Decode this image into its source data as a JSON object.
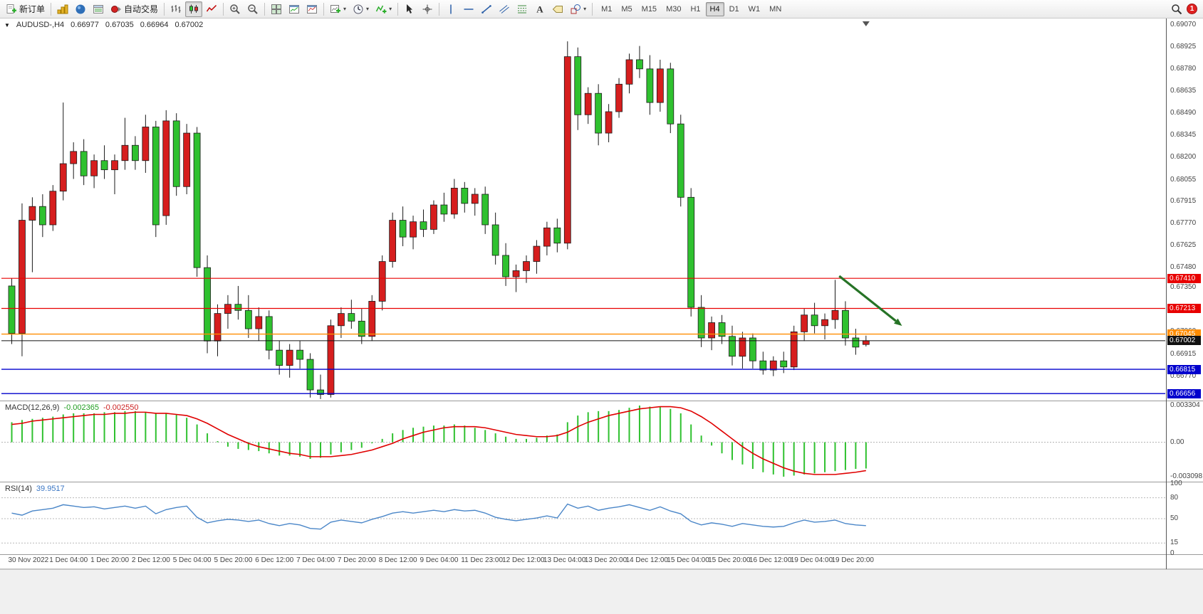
{
  "toolbar": {
    "new_order_label": "新订单",
    "autotrading_label": "自动交易",
    "timeframes": [
      "M1",
      "M5",
      "M15",
      "M30",
      "H1",
      "H4",
      "D1",
      "W1",
      "MN"
    ],
    "active_timeframe": "H4",
    "notification_badge": "1",
    "icons": [
      "new-order-icon",
      "market-watch-icon",
      "navigator-icon",
      "terminal-icon",
      "autotrading-icon",
      "bar-chart-icon",
      "candlestick-chart-icon",
      "line-chart-icon",
      "zoom-in-icon",
      "zoom-out-icon",
      "tile-windows-icon",
      "window-chart-icon",
      "window-report-icon",
      "new-chart-icon",
      "clock-icon",
      "indicators-icon",
      "cursor-icon",
      "crosshair-icon",
      "vertical-line-icon",
      "horizontal-line-icon",
      "trendline-icon",
      "channel-icon",
      "fibonacci-icon",
      "text-icon",
      "label-icon",
      "shapes-icon",
      "search-icon"
    ]
  },
  "header": {
    "symbol_period": "AUDUSD-,H4",
    "open": "0.66977",
    "high": "0.67035",
    "low": "0.66964",
    "close": "0.67002"
  },
  "price_axis": {
    "labels": [
      "0.69070",
      "0.68925",
      "0.68780",
      "0.68635",
      "0.68490",
      "0.68345",
      "0.68200",
      "0.68055",
      "0.67915",
      "0.67770",
      "0.67625",
      "0.67480",
      "0.67350",
      "0.67205",
      "0.67060",
      "0.66915",
      "0.66770",
      "0.66635"
    ]
  },
  "time_axis": {
    "labels": [
      "30 Nov 2022",
      "1 Dec 04:00",
      "1 Dec 20:00",
      "2 Dec 12:00",
      "5 Dec 04:00",
      "5 Dec 20:00",
      "6 Dec 12:00",
      "7 Dec 04:00",
      "7 Dec 20:00",
      "8 Dec 12:00",
      "9 Dec 04:00",
      "11 Dec 23:00",
      "12 Dec 12:00",
      "13 Dec 04:00",
      "13 Dec 20:00",
      "14 Dec 12:00",
      "15 Dec 04:00",
      "15 Dec 20:00",
      "16 Dec 12:00",
      "19 Dec 04:00",
      "19 Dec 20:00"
    ]
  },
  "hlines": [
    {
      "price": 0.6741,
      "label": "0.67410",
      "color": "#e80000",
      "width": 1.2
    },
    {
      "price": 0.67213,
      "label": "0.67213",
      "color": "#e80000",
      "width": 1.2
    },
    {
      "price": 0.67045,
      "label": "0.67045",
      "color": "#ff8c00",
      "width": 1.4
    },
    {
      "price": 0.67002,
      "label": "0.67002",
      "color": "#111111",
      "width": 1,
      "role": "bid"
    },
    {
      "price": 0.66815,
      "label": "0.66815",
      "color": "#0000cd",
      "width": 1.4
    },
    {
      "price": 0.66656,
      "label": "0.66656",
      "color": "#0000cd",
      "width": 1.4
    }
  ],
  "arrow": {
    "x1_index": 80.4,
    "price1": 0.67425,
    "x2_index": 86.5,
    "price2": 0.67099,
    "color": "#267326"
  },
  "colors": {
    "bull": "#d61e1e",
    "bear": "#2fc12f",
    "wick": "#1a1a1a",
    "macd_hist": "#2fc12f",
    "macd_signal": "#e00000",
    "rsi_line": "#4a86c8",
    "bid_line": "#111111"
  },
  "indicators": {
    "macd": {
      "label": "MACD(12,26,9)",
      "value_main": "-0.002365",
      "value_signal": "-0.002550",
      "scale_labels": [
        "0.003304",
        "0.00",
        "-0.003098"
      ]
    },
    "rsi": {
      "label": "RSI(14)",
      "value": "39.9517",
      "scale_labels": [
        "100",
        "80",
        "50",
        "15",
        "0"
      ],
      "levels": [
        80,
        50,
        15
      ]
    }
  },
  "chart_data": [
    {
      "type": "candlestick",
      "title": "AUDUSD- H4",
      "ylim": [
        0.66615,
        0.69105
      ],
      "ohlc": [
        [
          0.6736,
          0.6741,
          0.6698,
          0.6705
        ],
        [
          0.6705,
          0.679,
          0.669,
          0.6779
        ],
        [
          0.6779,
          0.6794,
          0.6745,
          0.6788
        ],
        [
          0.6788,
          0.6796,
          0.6768,
          0.6776
        ],
        [
          0.6776,
          0.6802,
          0.6772,
          0.6798
        ],
        [
          0.6798,
          0.6856,
          0.6792,
          0.6816
        ],
        [
          0.6816,
          0.683,
          0.6806,
          0.6824
        ],
        [
          0.6824,
          0.6832,
          0.6802,
          0.6808
        ],
        [
          0.6808,
          0.6822,
          0.68,
          0.6818
        ],
        [
          0.6818,
          0.6828,
          0.6806,
          0.6812
        ],
        [
          0.6812,
          0.6822,
          0.6796,
          0.6818
        ],
        [
          0.6818,
          0.6846,
          0.6812,
          0.6828
        ],
        [
          0.6828,
          0.6834,
          0.6812,
          0.6818
        ],
        [
          0.6818,
          0.6848,
          0.681,
          0.684
        ],
        [
          0.684,
          0.6844,
          0.6768,
          0.6776
        ],
        [
          0.6782,
          0.6851,
          0.6776,
          0.6844
        ],
        [
          0.6844,
          0.6849,
          0.6795,
          0.6801
        ],
        [
          0.6801,
          0.6842,
          0.6796,
          0.6836
        ],
        [
          0.6836,
          0.684,
          0.6742,
          0.6748
        ],
        [
          0.6748,
          0.6756,
          0.6692,
          0.67
        ],
        [
          0.67,
          0.6724,
          0.669,
          0.6718
        ],
        [
          0.6718,
          0.673,
          0.6708,
          0.6724
        ],
        [
          0.6724,
          0.6736,
          0.6714,
          0.672
        ],
        [
          0.672,
          0.673,
          0.6702,
          0.6708
        ],
        [
          0.6708,
          0.6722,
          0.67,
          0.6716
        ],
        [
          0.6716,
          0.672,
          0.6688,
          0.6694
        ],
        [
          0.6694,
          0.67,
          0.6678,
          0.6684
        ],
        [
          0.6684,
          0.6698,
          0.6676,
          0.6694
        ],
        [
          0.6694,
          0.67,
          0.6682,
          0.6688
        ],
        [
          0.6688,
          0.6692,
          0.6663,
          0.6668
        ],
        [
          0.6668,
          0.6678,
          0.6662,
          0.6665
        ],
        [
          0.6665,
          0.6714,
          0.6663,
          0.671
        ],
        [
          0.671,
          0.6722,
          0.6702,
          0.6718
        ],
        [
          0.6718,
          0.6727,
          0.6708,
          0.6713
        ],
        [
          0.6713,
          0.6721,
          0.6698,
          0.6703
        ],
        [
          0.6703,
          0.673,
          0.67,
          0.6726
        ],
        [
          0.6726,
          0.6756,
          0.672,
          0.6752
        ],
        [
          0.6752,
          0.6784,
          0.6748,
          0.6779
        ],
        [
          0.6779,
          0.6788,
          0.6762,
          0.6768
        ],
        [
          0.6768,
          0.6782,
          0.676,
          0.6778
        ],
        [
          0.6778,
          0.6786,
          0.6768,
          0.6773
        ],
        [
          0.6773,
          0.6792,
          0.677,
          0.6789
        ],
        [
          0.6789,
          0.6797,
          0.6778,
          0.6783
        ],
        [
          0.6783,
          0.6806,
          0.678,
          0.68
        ],
        [
          0.68,
          0.6804,
          0.6784,
          0.679
        ],
        [
          0.679,
          0.68,
          0.6782,
          0.6796
        ],
        [
          0.6796,
          0.6801,
          0.677,
          0.6776
        ],
        [
          0.6776,
          0.6784,
          0.675,
          0.6756
        ],
        [
          0.6756,
          0.6764,
          0.6736,
          0.6742
        ],
        [
          0.6742,
          0.675,
          0.6732,
          0.6746
        ],
        [
          0.6746,
          0.6756,
          0.6738,
          0.6752
        ],
        [
          0.6752,
          0.6766,
          0.6744,
          0.6762
        ],
        [
          0.6762,
          0.6778,
          0.6756,
          0.6774
        ],
        [
          0.6774,
          0.678,
          0.6758,
          0.6764
        ],
        [
          0.6764,
          0.6896,
          0.676,
          0.6886
        ],
        [
          0.6886,
          0.6892,
          0.6838,
          0.6848
        ],
        [
          0.6848,
          0.6866,
          0.6842,
          0.6862
        ],
        [
          0.6862,
          0.6868,
          0.6828,
          0.6836
        ],
        [
          0.6836,
          0.6855,
          0.683,
          0.685
        ],
        [
          0.685,
          0.6872,
          0.6846,
          0.6868
        ],
        [
          0.6868,
          0.6888,
          0.6862,
          0.6884
        ],
        [
          0.6884,
          0.6893,
          0.6872,
          0.6878
        ],
        [
          0.6878,
          0.6887,
          0.6848,
          0.6856
        ],
        [
          0.6856,
          0.6884,
          0.685,
          0.6878
        ],
        [
          0.6878,
          0.6882,
          0.6836,
          0.6842
        ],
        [
          0.6842,
          0.6848,
          0.6788,
          0.6794
        ],
        [
          0.6794,
          0.68,
          0.6716,
          0.6722
        ],
        [
          0.6722,
          0.673,
          0.6696,
          0.6702
        ],
        [
          0.6702,
          0.6716,
          0.6694,
          0.6712
        ],
        [
          0.6712,
          0.6717,
          0.6698,
          0.6703
        ],
        [
          0.6703,
          0.671,
          0.6684,
          0.669
        ],
        [
          0.669,
          0.6706,
          0.6682,
          0.6702
        ],
        [
          0.6702,
          0.6705,
          0.6682,
          0.6687
        ],
        [
          0.6687,
          0.6693,
          0.6678,
          0.6681
        ],
        [
          0.6681,
          0.669,
          0.6677,
          0.6687
        ],
        [
          0.6687,
          0.6693,
          0.6679,
          0.6683
        ],
        [
          0.6683,
          0.671,
          0.6681,
          0.6706
        ],
        [
          0.6706,
          0.6721,
          0.67,
          0.6717
        ],
        [
          0.6717,
          0.6725,
          0.6705,
          0.671
        ],
        [
          0.671,
          0.6718,
          0.6701,
          0.6714
        ],
        [
          0.6714,
          0.674,
          0.6708,
          0.672
        ],
        [
          0.672,
          0.6726,
          0.6697,
          0.6702
        ],
        [
          0.6702,
          0.6708,
          0.6691,
          0.6696
        ],
        [
          0.66977,
          0.67035,
          0.66964,
          0.67002
        ]
      ]
    },
    {
      "type": "bar",
      "title": "MACD(12,26,9)",
      "ylim": [
        -0.0031,
        0.0033
      ],
      "values": [
        0.0018,
        0.002,
        0.0021,
        0.0022,
        0.0023,
        0.0025,
        0.0026,
        0.0026,
        0.0026,
        0.0027,
        0.0027,
        0.0028,
        0.0028,
        0.0027,
        0.0026,
        0.0026,
        0.0025,
        0.0022,
        0.0016,
        0.0008,
        0.0001,
        -0.0004,
        -0.0006,
        -0.0007,
        -0.0008,
        -0.001,
        -0.0012,
        -0.0012,
        -0.0013,
        -0.0015,
        -0.0014,
        -0.0011,
        -0.0009,
        -0.0007,
        -0.0005,
        -0.0001,
        0.0003,
        0.0008,
        0.0011,
        0.0013,
        0.0014,
        0.0015,
        0.0015,
        0.0016,
        0.0015,
        0.0013,
        0.0011,
        0.0008,
        0.0005,
        0.0003,
        0.0003,
        0.0004,
        0.0006,
        0.0007,
        0.0018,
        0.0024,
        0.0027,
        0.0028,
        0.0028,
        0.0029,
        0.0031,
        0.0033,
        0.0032,
        0.0032,
        0.003,
        0.0026,
        0.0016,
        0.0006,
        -0.0003,
        -0.001,
        -0.0016,
        -0.002,
        -0.0024,
        -0.0027,
        -0.0029,
        -0.0031,
        -0.003,
        -0.0029,
        -0.0028,
        -0.0027,
        -0.0026,
        -0.0025,
        -0.0024,
        -0.002365
      ],
      "signal": [
        0.0016,
        0.0017,
        0.0019,
        0.002,
        0.0021,
        0.0022,
        0.0023,
        0.0024,
        0.0025,
        0.0025,
        0.0026,
        0.0026,
        0.0027,
        0.0027,
        0.0026,
        0.0026,
        0.0025,
        0.0024,
        0.0021,
        0.0017,
        0.0012,
        0.0007,
        0.0003,
        -0.0001,
        -0.0004,
        -0.0006,
        -0.0008,
        -0.001,
        -0.0011,
        -0.0013,
        -0.0013,
        -0.0013,
        -0.0012,
        -0.0011,
        -0.0009,
        -0.0007,
        -0.0004,
        -0.0001,
        0.0003,
        0.0006,
        0.0009,
        0.0011,
        0.0013,
        0.0014,
        0.0014,
        0.0014,
        0.0013,
        0.0011,
        0.0009,
        0.0007,
        0.0006,
        0.0005,
        0.0005,
        0.0006,
        0.0009,
        0.0014,
        0.0018,
        0.0021,
        0.0024,
        0.0026,
        0.0028,
        0.003,
        0.0031,
        0.0032,
        0.0032,
        0.0031,
        0.0028,
        0.0023,
        0.0017,
        0.001,
        0.0003,
        -0.0004,
        -0.001,
        -0.0015,
        -0.0019,
        -0.0023,
        -0.0026,
        -0.0028,
        -0.0029,
        -0.0029,
        -0.0029,
        -0.0028,
        -0.0027,
        -0.00255
      ]
    },
    {
      "type": "line",
      "title": "RSI(14)",
      "ylim": [
        0,
        100
      ],
      "values": [
        58,
        55,
        61,
        63,
        65,
        70,
        68,
        66,
        67,
        64,
        66,
        68,
        65,
        68,
        57,
        63,
        66,
        68,
        52,
        44,
        47,
        49,
        48,
        46,
        48,
        43,
        40,
        43,
        41,
        36,
        35,
        45,
        48,
        46,
        44,
        49,
        53,
        58,
        60,
        58,
        60,
        62,
        60,
        63,
        61,
        62,
        58,
        52,
        49,
        47,
        49,
        51,
        54,
        51,
        71,
        65,
        68,
        62,
        65,
        67,
        70,
        66,
        62,
        67,
        61,
        57,
        46,
        41,
        44,
        42,
        39,
        43,
        41,
        39,
        38,
        39,
        44,
        48,
        45,
        46,
        48,
        43,
        41,
        39.95
      ]
    }
  ]
}
